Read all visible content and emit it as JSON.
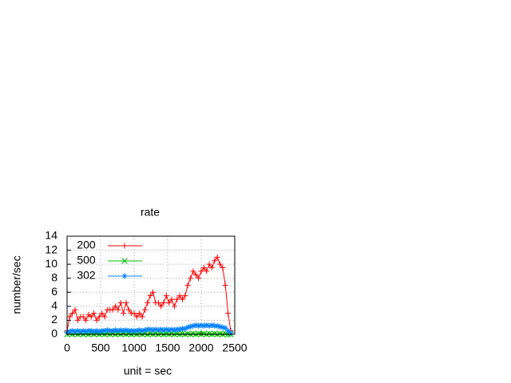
{
  "chart_data": {
    "type": "line",
    "title": "rate",
    "x_label": "unit = sec",
    "y_label": "number/sec",
    "x": [
      0,
      40,
      80,
      120,
      160,
      200,
      240,
      280,
      320,
      360,
      400,
      440,
      480,
      520,
      560,
      600,
      640,
      680,
      720,
      760,
      800,
      840,
      880,
      920,
      960,
      1000,
      1040,
      1080,
      1120,
      1160,
      1200,
      1240,
      1280,
      1320,
      1360,
      1400,
      1440,
      1480,
      1520,
      1560,
      1600,
      1640,
      1680,
      1720,
      1760,
      1800,
      1840,
      1880,
      1920,
      1960,
      2000,
      2040,
      2080,
      2120,
      2160,
      2200,
      2240,
      2280,
      2320,
      2360,
      2400,
      2440
    ],
    "series": [
      {
        "name": "200",
        "color": "#ff0000",
        "marker": "plus",
        "values": [
          0.5,
          2.5,
          3,
          3.5,
          2,
          2.5,
          2.5,
          2,
          2.8,
          2.5,
          3,
          2,
          2.5,
          3,
          2.5,
          3.5,
          3.5,
          3.5,
          4,
          3.5,
          4.5,
          3,
          4.5,
          3.5,
          3,
          3,
          2.5,
          3,
          2.5,
          3.5,
          4.5,
          5.5,
          6,
          4.5,
          4.5,
          4,
          4.5,
          5.5,
          4.5,
          5,
          4,
          5,
          5.5,
          5,
          5.5,
          7,
          8,
          9,
          8.5,
          8,
          9,
          9.5,
          9,
          10,
          9.5,
          10.5,
          11,
          10,
          9.5,
          7,
          3,
          0.5
        ]
      },
      {
        "name": "500",
        "color": "#00c000",
        "marker": "cross",
        "values": [
          0,
          0.1,
          0,
          0.1,
          0,
          0.1,
          0,
          0.1,
          0,
          0.1,
          0,
          0.1,
          0,
          0.1,
          0,
          0.1,
          0,
          0.1,
          0,
          0.1,
          0,
          0.1,
          0,
          0.1,
          0,
          0.1,
          0,
          0.1,
          0,
          0.1,
          0,
          0.1,
          0,
          0.1,
          0,
          0.1,
          0,
          0.1,
          0,
          0.1,
          0,
          0.1,
          0,
          0.1,
          0,
          0.1,
          0,
          0.1,
          0,
          0.1,
          0,
          0.1,
          0,
          0.1,
          0,
          0.1,
          0,
          0.1,
          0,
          0.1,
          0,
          0
        ]
      },
      {
        "name": "302",
        "color": "#0080ff",
        "marker": "star",
        "values": [
          0.3,
          0.4,
          0.5,
          0.4,
          0.5,
          0.4,
          0.5,
          0.4,
          0.5,
          0.5,
          0.4,
          0.5,
          0.4,
          0.5,
          0.5,
          0.6,
          0.5,
          0.5,
          0.6,
          0.5,
          0.6,
          0.5,
          0.6,
          0.5,
          0.5,
          0.5,
          0.5,
          0.6,
          0.5,
          0.6,
          0.7,
          0.7,
          0.6,
          0.7,
          0.6,
          0.7,
          0.6,
          0.7,
          0.6,
          0.7,
          0.6,
          0.7,
          0.7,
          0.8,
          0.8,
          1.0,
          1.1,
          1.2,
          1.3,
          1.2,
          1.3,
          1.2,
          1.3,
          1.2,
          1.3,
          1.2,
          1.2,
          1.1,
          1.0,
          0.9,
          0.5,
          0.2
        ]
      }
    ],
    "xlim": [
      0,
      2500
    ],
    "xticks": [
      0,
      500,
      1000,
      1500,
      2000,
      2500
    ],
    "ylim": [
      0,
      14
    ],
    "yticks": [
      0,
      2,
      4,
      6,
      8,
      10,
      12,
      14
    ],
    "grid": true,
    "legend": "top-left"
  }
}
